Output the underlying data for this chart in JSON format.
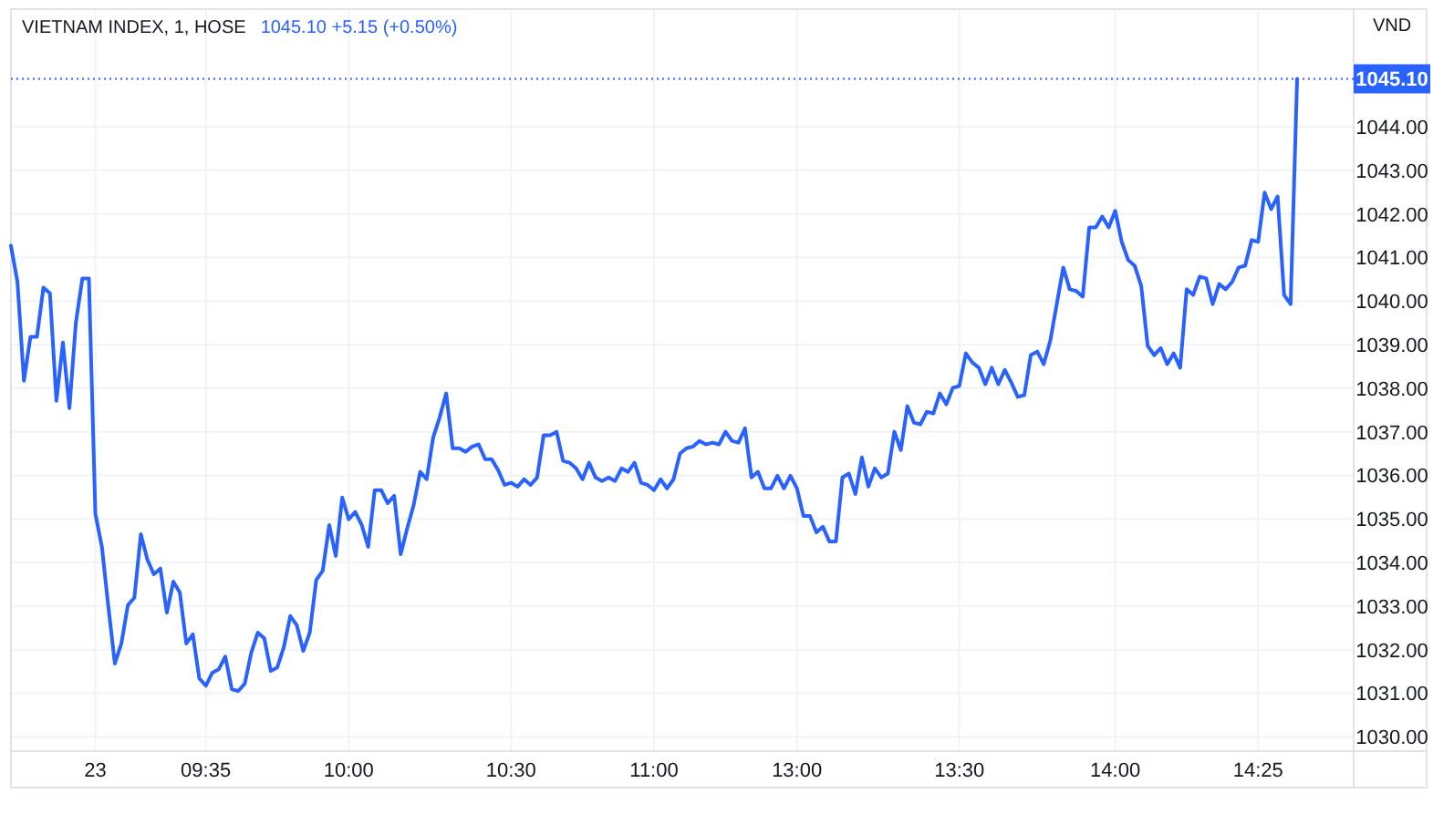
{
  "chart_data": {
    "type": "line",
    "title": "VIETNAM INDEX, 1, HOSE",
    "subtitle": "1045.10 +5.15 (+0.50%)",
    "ylabel": "VND",
    "categories": [
      null,
      null,
      null,
      null,
      null,
      null,
      null,
      null,
      null,
      null,
      null,
      null,
      null,
      "23",
      null,
      null,
      null,
      null,
      null,
      null,
      null,
      null,
      null,
      null,
      null,
      null,
      null,
      null,
      null,
      null,
      "09:35",
      null,
      null,
      null,
      null,
      null,
      null,
      null,
      null,
      null,
      null,
      null,
      null,
      null,
      null,
      null,
      null,
      null,
      null,
      null,
      null,
      null,
      "10:00",
      null,
      null,
      null,
      null,
      null,
      null,
      null,
      null,
      null,
      null,
      null,
      null,
      null,
      null,
      null,
      null,
      null,
      null,
      null,
      null,
      null,
      null,
      null,
      null,
      "10:30",
      null,
      null,
      null,
      null,
      null,
      null,
      null,
      null,
      null,
      null,
      null,
      null,
      null,
      null,
      null,
      null,
      null,
      null,
      null,
      null,
      null,
      "11:00",
      null,
      null,
      null,
      null,
      null,
      null,
      null,
      null,
      null,
      null,
      null,
      null,
      null,
      null,
      null,
      null,
      null,
      null,
      null,
      null,
      null,
      "13:00",
      null,
      null,
      null,
      null,
      null,
      null,
      null,
      null,
      null,
      null,
      null,
      null,
      null,
      null,
      null,
      null,
      null,
      null,
      null,
      null,
      null,
      null,
      null,
      null,
      "13:30",
      null,
      null,
      null,
      null,
      null,
      null,
      null,
      null,
      null,
      null,
      null,
      null,
      null,
      null,
      null,
      null,
      null,
      null,
      null,
      null,
      null,
      null,
      null,
      "14:00",
      null,
      null,
      null,
      null,
      null,
      null,
      null,
      null,
      null,
      null,
      null,
      null,
      null,
      null,
      null,
      null,
      null,
      null,
      null,
      null,
      null,
      "14:25",
      null,
      null,
      null,
      null,
      null,
      null
    ],
    "series": [
      {
        "color": "#2962ff",
        "values": [
          1041.27,
          1040.44,
          1038.17,
          1039.18,
          1039.18,
          1040.31,
          1040.18,
          1037.71,
          1039.05,
          1037.54,
          1039.51,
          1040.52,
          1040.52,
          1035.11,
          1034.36,
          1032.98,
          1031.68,
          1032.14,
          1033.02,
          1033.19,
          1034.65,
          1034.07,
          1033.73,
          1033.86,
          1032.85,
          1033.56,
          1033.31,
          1032.14,
          1032.35,
          1031.34,
          1031.17,
          1031.47,
          1031.55,
          1031.84,
          1031.09,
          1031.05,
          1031.22,
          1031.93,
          1032.39,
          1032.26,
          1031.51,
          1031.59,
          1032.05,
          1032.77,
          1032.56,
          1031.97,
          1032.39,
          1033.6,
          1033.81,
          1034.86,
          1034.15,
          1035.49,
          1034.99,
          1035.16,
          1034.86,
          1034.36,
          1035.66,
          1035.66,
          1035.36,
          1035.53,
          1034.19,
          1034.78,
          1035.32,
          1036.08,
          1035.91,
          1036.87,
          1037.33,
          1037.88,
          1036.62,
          1036.62,
          1036.54,
          1036.66,
          1036.71,
          1036.37,
          1036.37,
          1036.12,
          1035.78,
          1035.83,
          1035.74,
          1035.91,
          1035.78,
          1035.95,
          1036.92,
          1036.92,
          1037.0,
          1036.33,
          1036.29,
          1036.16,
          1035.91,
          1036.29,
          1035.95,
          1035.87,
          1035.95,
          1035.87,
          1036.16,
          1036.08,
          1036.29,
          1035.83,
          1035.78,
          1035.66,
          1035.91,
          1035.7,
          1035.91,
          1036.5,
          1036.62,
          1036.66,
          1036.79,
          1036.71,
          1036.75,
          1036.71,
          1037.0,
          1036.79,
          1036.75,
          1037.08,
          1035.95,
          1036.08,
          1035.7,
          1035.7,
          1035.99,
          1035.7,
          1035.99,
          1035.7,
          1035.07,
          1035.07,
          1034.69,
          1034.82,
          1034.48,
          1034.48,
          1035.95,
          1036.04,
          1035.57,
          1036.41,
          1035.74,
          1036.16,
          1035.95,
          1036.04,
          1037.0,
          1036.58,
          1037.59,
          1037.21,
          1037.17,
          1037.46,
          1037.42,
          1037.88,
          1037.63,
          1038.01,
          1038.05,
          1038.8,
          1038.59,
          1038.47,
          1038.09,
          1038.47,
          1038.09,
          1038.42,
          1038.13,
          1037.8,
          1037.84,
          1038.76,
          1038.84,
          1038.55,
          1039.09,
          1039.93,
          1040.77,
          1040.27,
          1040.23,
          1040.1,
          1041.69,
          1041.69,
          1041.94,
          1041.69,
          1042.07,
          1041.36,
          1040.94,
          1040.81,
          1040.35,
          1038.97,
          1038.76,
          1038.92,
          1038.55,
          1038.8,
          1038.47,
          1040.27,
          1040.14,
          1040.56,
          1040.52,
          1039.93,
          1040.39,
          1040.27,
          1040.44,
          1040.77,
          1040.81,
          1041.4,
          1041.36,
          1042.49,
          1042.11,
          1042.4,
          1040.14,
          1039.93,
          1045.1
        ]
      }
    ],
    "ylim": [
      1029.67,
      1046.7
    ],
    "yticks": [
      {
        "value": 1030,
        "label": "1030.00"
      },
      {
        "value": 1031,
        "label": "1031.00"
      },
      {
        "value": 1032,
        "label": "1032.00"
      },
      {
        "value": 1033,
        "label": "1033.00"
      },
      {
        "value": 1034,
        "label": "1034.00"
      },
      {
        "value": 1035,
        "label": "1035.00"
      },
      {
        "value": 1036,
        "label": "1036.00"
      },
      {
        "value": 1037,
        "label": "1037.00"
      },
      {
        "value": 1038,
        "label": "1038.00"
      },
      {
        "value": 1039,
        "label": "1039.00"
      },
      {
        "value": 1040,
        "label": "1040.00"
      },
      {
        "value": 1041,
        "label": "1041.00"
      },
      {
        "value": 1042,
        "label": "1042.00"
      },
      {
        "value": 1043,
        "label": "1043.00"
      },
      {
        "value": 1044,
        "label": "1044.00"
      }
    ],
    "ref_lines": [
      {
        "axis": "y",
        "value": 1045.1,
        "label": "1045.10",
        "color": "#2962ff",
        "line_style": "dotted"
      }
    ],
    "grid": true,
    "line_style": "solid",
    "marker": "none"
  }
}
